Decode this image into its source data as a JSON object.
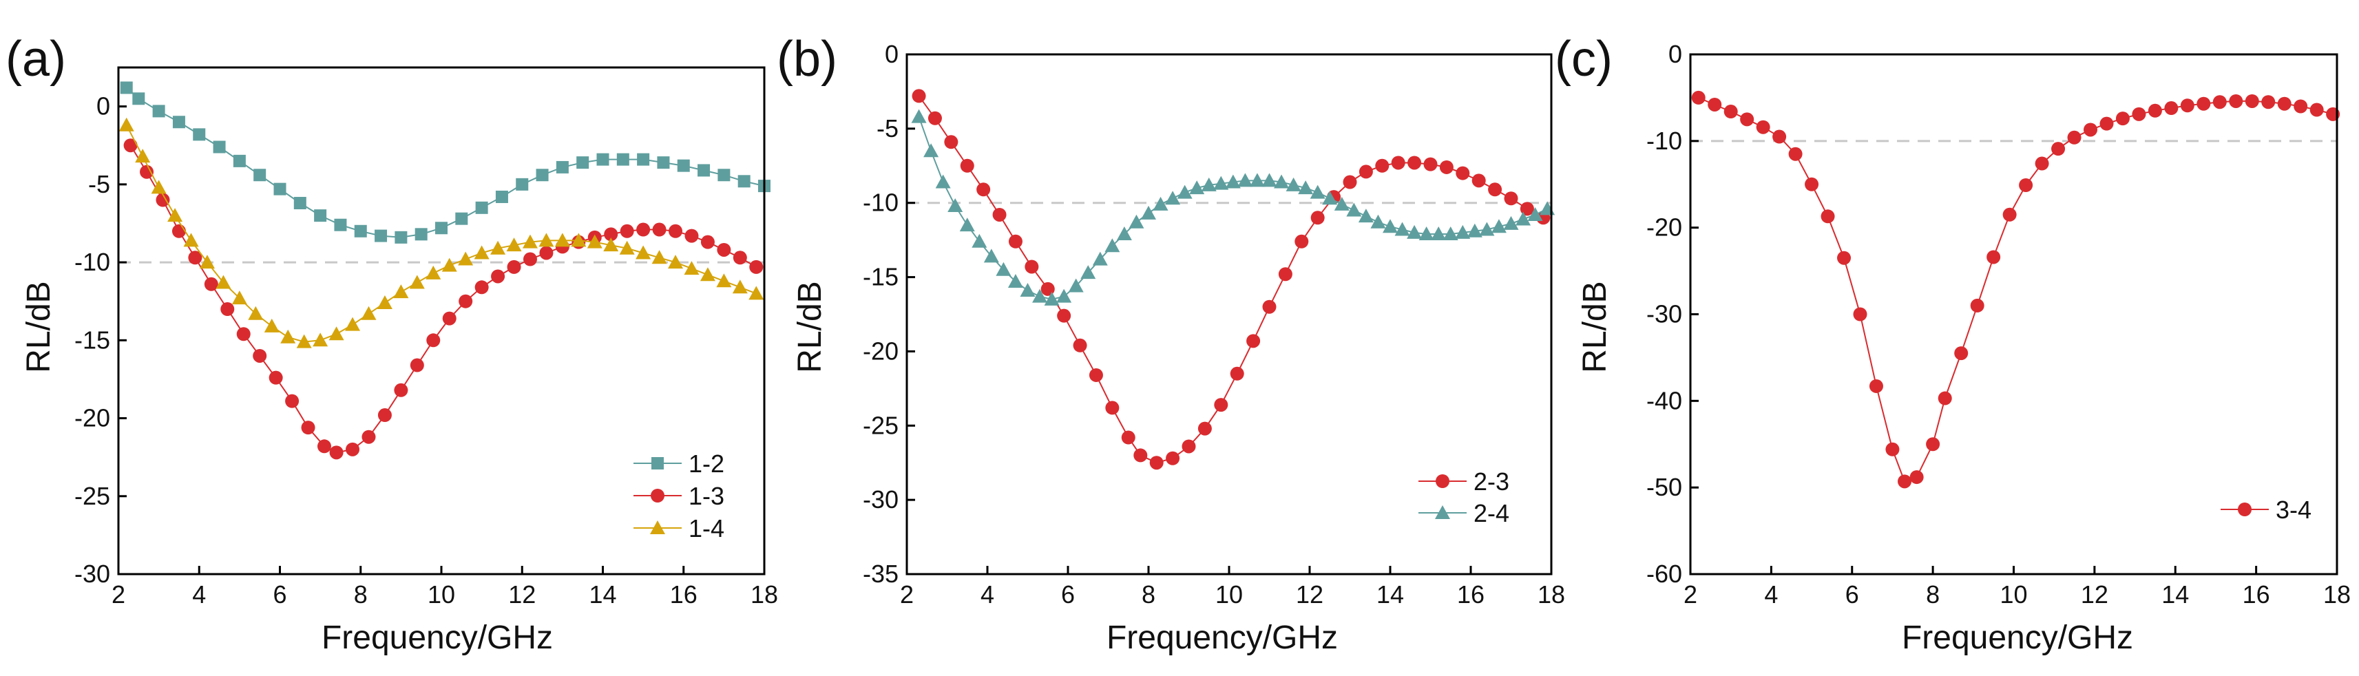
{
  "figure": {
    "panels": [
      {
        "label": "(a)"
      },
      {
        "label": "(b)"
      },
      {
        "label": "(c)"
      }
    ]
  },
  "colors": {
    "teal": "#5f9e9e",
    "red": "#d92b2f",
    "gold": "#d6a40a",
    "reference_line": "#c8c8c8"
  },
  "chart_data": [
    {
      "type": "line",
      "panel": "(a)",
      "xlabel": "Frequency/GHz",
      "ylabel": "RL/dB",
      "xlim": [
        2,
        18
      ],
      "ylim": [
        -30,
        2.5
      ],
      "xticks": [
        2,
        4,
        6,
        8,
        10,
        12,
        14,
        16,
        18
      ],
      "yticks": [
        0,
        -5,
        -10,
        -15,
        -20,
        -25,
        -30
      ],
      "reference_line": -10,
      "legend_position": "bottom-right",
      "series": [
        {
          "name": "1-2",
          "marker": "square",
          "color": "#5f9e9e",
          "x": [
            2.2,
            2.5,
            3,
            3.5,
            4,
            4.5,
            5,
            5.5,
            6,
            6.5,
            7,
            7.5,
            8,
            8.5,
            9,
            9.5,
            10,
            10.5,
            11,
            11.5,
            12,
            12.5,
            13,
            13.5,
            14,
            14.5,
            15,
            15.5,
            16,
            16.5,
            17,
            17.5,
            18
          ],
          "y": [
            1.2,
            0.5,
            -0.3,
            -1.0,
            -1.8,
            -2.6,
            -3.5,
            -4.4,
            -5.3,
            -6.2,
            -7.0,
            -7.6,
            -8.0,
            -8.3,
            -8.4,
            -8.2,
            -7.8,
            -7.2,
            -6.5,
            -5.8,
            -5.0,
            -4.4,
            -3.9,
            -3.6,
            -3.4,
            -3.4,
            -3.4,
            -3.6,
            -3.8,
            -4.1,
            -4.4,
            -4.8,
            -5.1
          ]
        },
        {
          "name": "1-3",
          "marker": "circle",
          "color": "#d92b2f",
          "x": [
            2.3,
            2.7,
            3.1,
            3.5,
            3.9,
            4.3,
            4.7,
            5.1,
            5.5,
            5.9,
            6.3,
            6.7,
            7.1,
            7.4,
            7.8,
            8.2,
            8.6,
            9.0,
            9.4,
            9.8,
            10.2,
            10.6,
            11.0,
            11.4,
            11.8,
            12.2,
            12.6,
            13.0,
            13.4,
            13.8,
            14.2,
            14.6,
            15.0,
            15.4,
            15.8,
            16.2,
            16.6,
            17.0,
            17.4,
            17.8
          ],
          "y": [
            -2.5,
            -4.2,
            -6.0,
            -8.0,
            -9.7,
            -11.4,
            -13.0,
            -14.6,
            -16.0,
            -17.4,
            -18.9,
            -20.6,
            -21.8,
            -22.2,
            -22.0,
            -21.2,
            -19.8,
            -18.2,
            -16.6,
            -15.0,
            -13.6,
            -12.5,
            -11.6,
            -10.9,
            -10.3,
            -9.8,
            -9.4,
            -9.0,
            -8.7,
            -8.4,
            -8.2,
            -8.0,
            -7.9,
            -7.9,
            -8.0,
            -8.3,
            -8.7,
            -9.2,
            -9.7,
            -10.3
          ]
        },
        {
          "name": "1-4",
          "marker": "triangle",
          "color": "#d6a40a",
          "x": [
            2.2,
            2.6,
            3,
            3.4,
            3.8,
            4.2,
            4.6,
            5,
            5.4,
            5.8,
            6.2,
            6.6,
            7,
            7.4,
            7.8,
            8.2,
            8.6,
            9,
            9.4,
            9.8,
            10.2,
            10.6,
            11,
            11.4,
            11.8,
            12.2,
            12.6,
            13,
            13.4,
            13.8,
            14.2,
            14.6,
            15,
            15.4,
            15.8,
            16.2,
            16.6,
            17,
            17.4,
            17.8
          ],
          "y": [
            -1.2,
            -3.2,
            -5.2,
            -7.0,
            -8.6,
            -10.0,
            -11.3,
            -12.3,
            -13.3,
            -14.1,
            -14.8,
            -15.1,
            -15.0,
            -14.6,
            -14.0,
            -13.3,
            -12.6,
            -11.9,
            -11.3,
            -10.7,
            -10.2,
            -9.8,
            -9.4,
            -9.1,
            -8.9,
            -8.7,
            -8.6,
            -8.6,
            -8.6,
            -8.7,
            -8.9,
            -9.1,
            -9.4,
            -9.7,
            -10.0,
            -10.4,
            -10.8,
            -11.2,
            -11.6,
            -12.0
          ]
        }
      ]
    },
    {
      "type": "line",
      "panel": "(b)",
      "xlabel": "Frequency/GHz",
      "ylabel": "RL/dB",
      "xlim": [
        2,
        18
      ],
      "ylim": [
        -35,
        0
      ],
      "xticks": [
        2,
        4,
        6,
        8,
        10,
        12,
        14,
        16,
        18
      ],
      "yticks": [
        0,
        -5,
        -10,
        -15,
        -20,
        -25,
        -30,
        -35
      ],
      "reference_line": -10,
      "legend_position": "bottom-right",
      "series": [
        {
          "name": "2-3",
          "marker": "circle",
          "color": "#d92b2f",
          "x": [
            2.3,
            2.7,
            3.1,
            3.5,
            3.9,
            4.3,
            4.7,
            5.1,
            5.5,
            5.9,
            6.3,
            6.7,
            7.1,
            7.5,
            7.8,
            8.2,
            8.6,
            9.0,
            9.4,
            9.8,
            10.2,
            10.6,
            11.0,
            11.4,
            11.8,
            12.2,
            12.6,
            13.0,
            13.4,
            13.8,
            14.2,
            14.6,
            15.0,
            15.4,
            15.8,
            16.2,
            16.6,
            17.0,
            17.4,
            17.8
          ],
          "y": [
            -2.8,
            -4.3,
            -5.9,
            -7.5,
            -9.1,
            -10.8,
            -12.6,
            -14.3,
            -15.8,
            -17.6,
            -19.6,
            -21.6,
            -23.8,
            -25.8,
            -27.0,
            -27.5,
            -27.2,
            -26.4,
            -25.2,
            -23.6,
            -21.5,
            -19.3,
            -17.0,
            -14.8,
            -12.6,
            -11.0,
            -9.6,
            -8.6,
            -7.9,
            -7.5,
            -7.3,
            -7.3,
            -7.4,
            -7.6,
            -8.0,
            -8.5,
            -9.1,
            -9.7,
            -10.4,
            -11.0
          ]
        },
        {
          "name": "2-4",
          "marker": "triangle",
          "color": "#5f9e9e",
          "x": [
            2.3,
            2.6,
            2.9,
            3.2,
            3.5,
            3.8,
            4.1,
            4.4,
            4.7,
            5.0,
            5.3,
            5.6,
            5.9,
            6.2,
            6.5,
            6.8,
            7.1,
            7.4,
            7.7,
            8.0,
            8.3,
            8.6,
            8.9,
            9.2,
            9.5,
            9.8,
            10.1,
            10.4,
            10.7,
            11.0,
            11.3,
            11.6,
            11.9,
            12.2,
            12.5,
            12.8,
            13.1,
            13.4,
            13.7,
            14.0,
            14.3,
            14.6,
            14.9,
            15.2,
            15.5,
            15.8,
            16.1,
            16.4,
            16.7,
            17.0,
            17.3,
            17.6,
            17.9
          ],
          "y": [
            -4.2,
            -6.5,
            -8.6,
            -10.2,
            -11.5,
            -12.6,
            -13.6,
            -14.5,
            -15.3,
            -15.9,
            -16.3,
            -16.5,
            -16.3,
            -15.6,
            -14.7,
            -13.8,
            -12.9,
            -12.1,
            -11.3,
            -10.7,
            -10.1,
            -9.7,
            -9.3,
            -9.0,
            -8.8,
            -8.7,
            -8.6,
            -8.5,
            -8.5,
            -8.5,
            -8.6,
            -8.8,
            -9.0,
            -9.3,
            -9.7,
            -10.1,
            -10.5,
            -10.9,
            -11.3,
            -11.6,
            -11.8,
            -12.0,
            -12.1,
            -12.1,
            -12.1,
            -12.0,
            -11.9,
            -11.8,
            -11.6,
            -11.4,
            -11.1,
            -10.8,
            -10.4
          ]
        }
      ]
    },
    {
      "type": "line",
      "panel": "(c)",
      "xlabel": "Frequency/GHz",
      "ylabel": "RL/dB",
      "xlim": [
        2,
        18
      ],
      "ylim": [
        -60,
        0
      ],
      "xticks": [
        2,
        4,
        6,
        8,
        10,
        12,
        14,
        16,
        18
      ],
      "yticks": [
        0,
        -10,
        -20,
        -30,
        -40,
        -50,
        -60
      ],
      "reference_line": -10,
      "legend_position": "bottom-right",
      "series": [
        {
          "name": "3-4",
          "marker": "circle",
          "color": "#d92b2f",
          "x": [
            2.2,
            2.6,
            3.0,
            3.4,
            3.8,
            4.2,
            4.6,
            5.0,
            5.4,
            5.8,
            6.2,
            6.6,
            7.0,
            7.3,
            7.6,
            8.0,
            8.3,
            8.7,
            9.1,
            9.5,
            9.9,
            10.3,
            10.7,
            11.1,
            11.5,
            11.9,
            12.3,
            12.7,
            13.1,
            13.5,
            13.9,
            14.3,
            14.7,
            15.1,
            15.5,
            15.9,
            16.3,
            16.7,
            17.1,
            17.5,
            17.9
          ],
          "y": [
            -5.0,
            -5.8,
            -6.6,
            -7.5,
            -8.4,
            -9.5,
            -11.5,
            -15.0,
            -18.7,
            -23.5,
            -30.0,
            -38.3,
            -45.6,
            -49.3,
            -48.8,
            -45.0,
            -39.7,
            -34.5,
            -29.0,
            -23.4,
            -18.5,
            -15.1,
            -12.6,
            -10.9,
            -9.6,
            -8.7,
            -8.0,
            -7.4,
            -6.9,
            -6.5,
            -6.2,
            -5.9,
            -5.7,
            -5.5,
            -5.4,
            -5.4,
            -5.5,
            -5.7,
            -6.0,
            -6.4,
            -6.9
          ]
        }
      ]
    }
  ]
}
